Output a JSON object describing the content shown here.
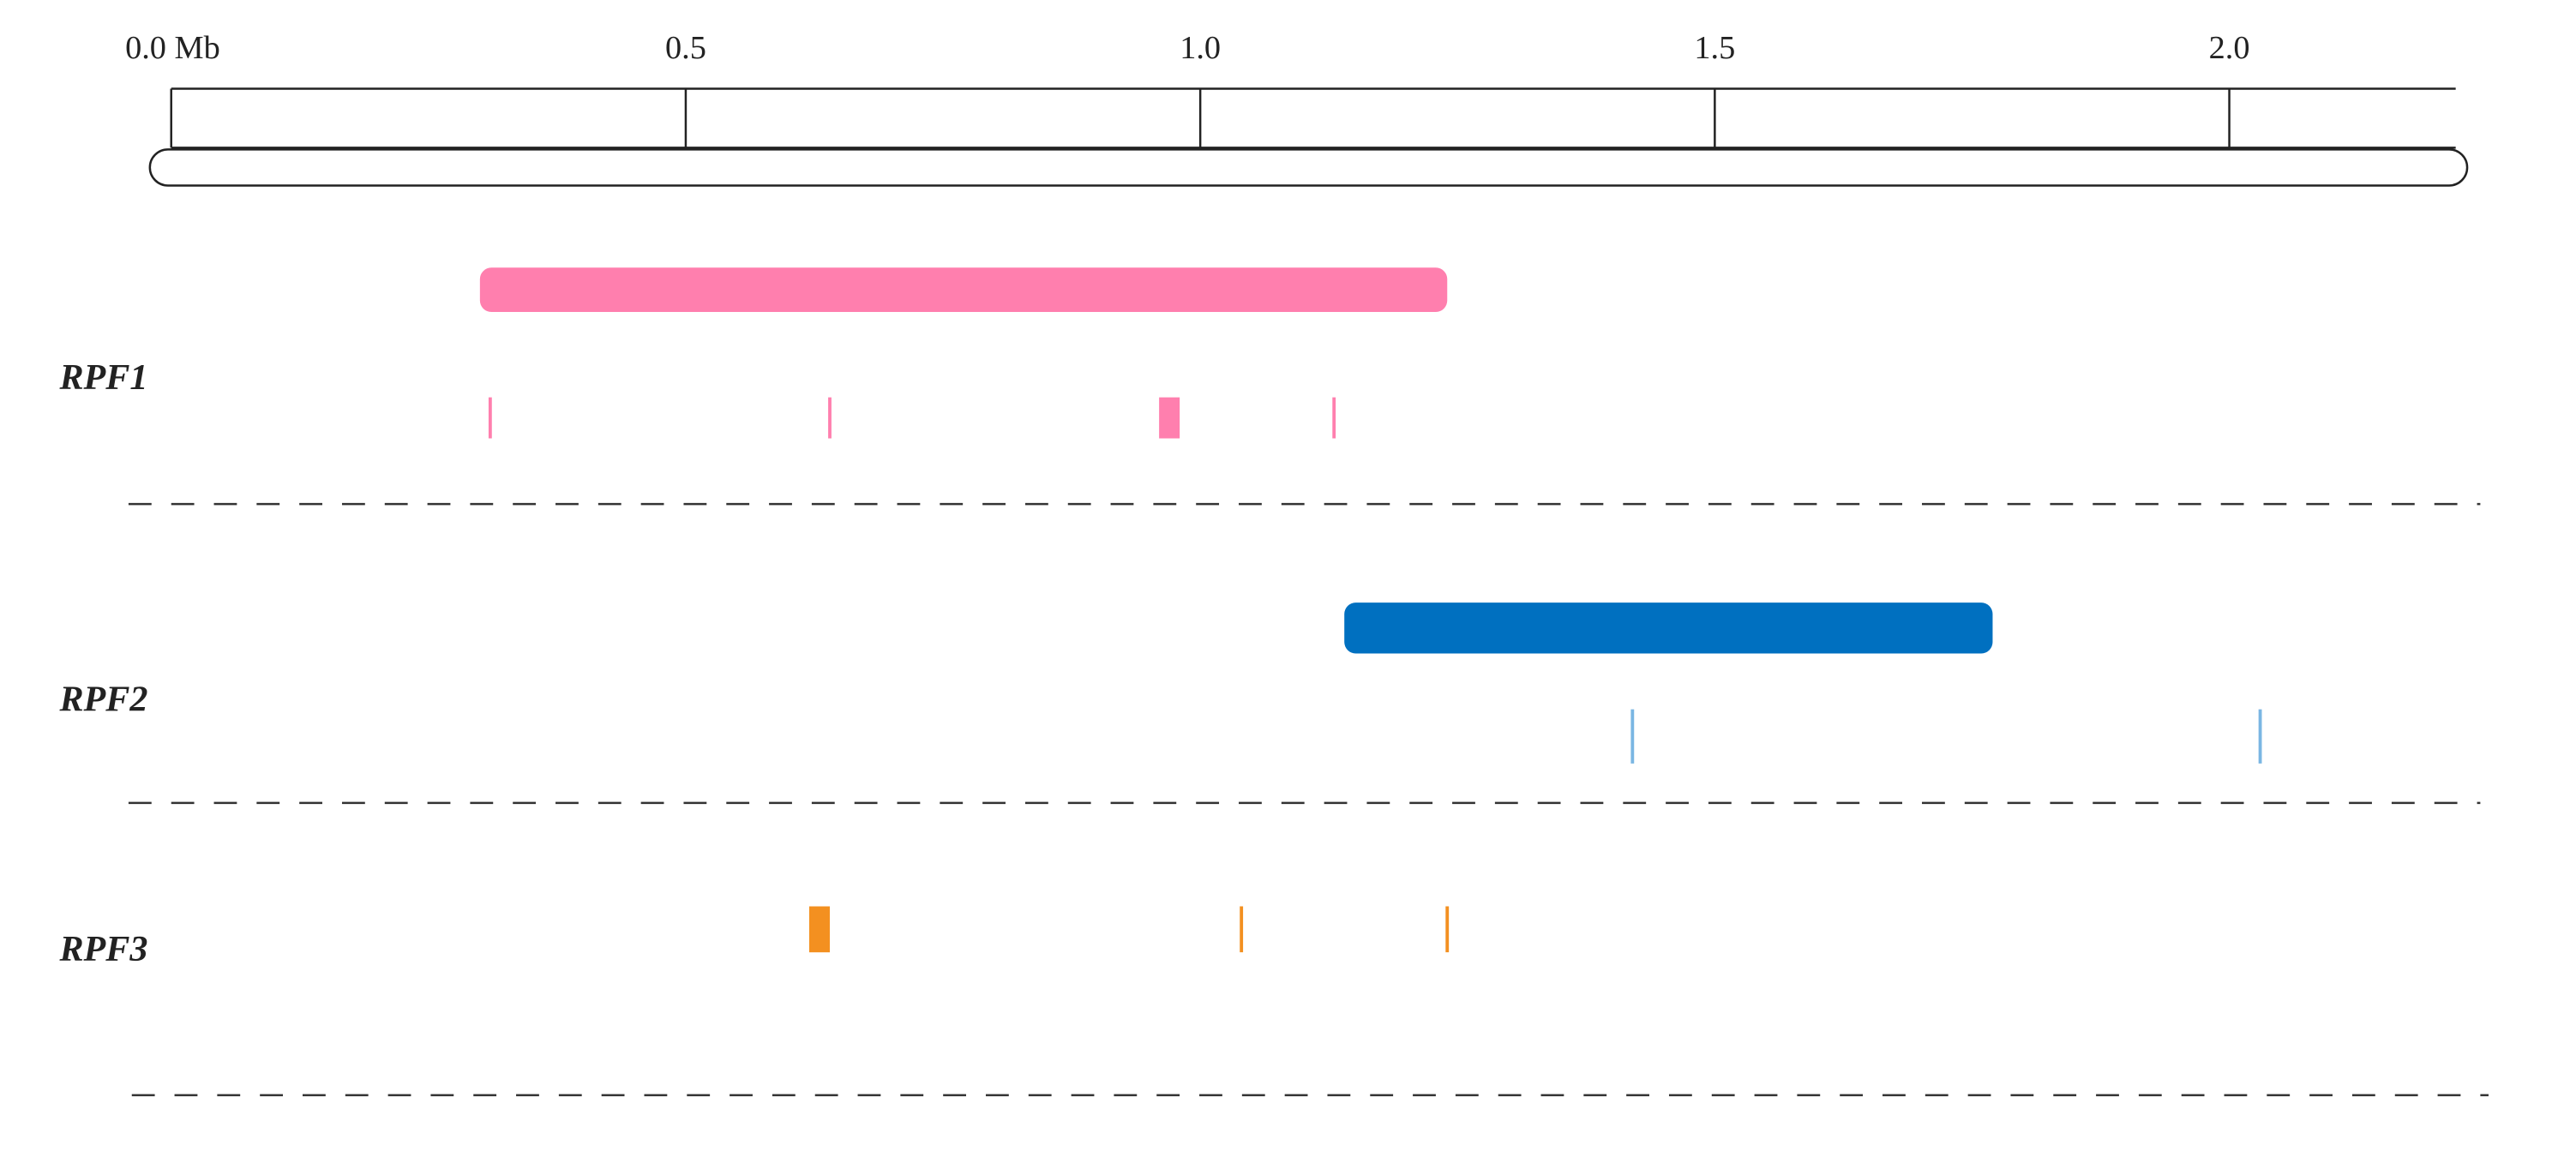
{
  "chart_data": {
    "type": "genome-track",
    "xlim": [
      0,
      2.22
    ],
    "xticks": [
      {
        "value": 0,
        "label": "0.0 Mb"
      },
      {
        "value": 0.5,
        "label": "0.5"
      },
      {
        "value": 1,
        "label": "1.0"
      },
      {
        "value": 1.5,
        "label": "1.5"
      },
      {
        "value": 2,
        "label": "2.0"
      }
    ],
    "tracks": [
      {
        "name": "RPF1",
        "color": "#ff7fae",
        "marker_color": "#ff7fae",
        "region": [
          0.3,
          1.24
        ],
        "markers": [
          0.31,
          0.64,
          {
            "start": 0.96,
            "end": 0.98
          },
          1.13
        ]
      },
      {
        "name": "RPF2",
        "color": "#0070c0",
        "marker_color": "#7ab6e3",
        "region": [
          1.14,
          1.77
        ],
        "markers": [
          1.42,
          2.03
        ]
      },
      {
        "name": "RPF3",
        "color": "#f39020",
        "marker_color": "#f39020",
        "region": null,
        "markers": [
          {
            "start": 0.62,
            "end": 0.64
          },
          1.04,
          1.24
        ]
      }
    ]
  }
}
